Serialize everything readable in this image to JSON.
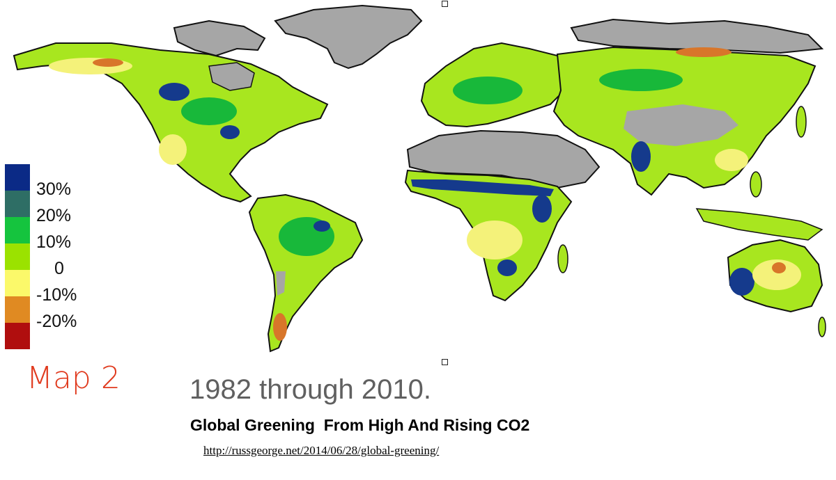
{
  "map": {
    "legend": {
      "colors": [
        "#0b2a86",
        "#2e6e65",
        "#15c43e",
        "#9be200",
        "#fbf96a",
        "#e08a22",
        "#b00e0e"
      ],
      "labels": [
        "30%",
        "20%",
        "10%",
        "0",
        "-10%",
        "-20%"
      ]
    },
    "land_colors": {
      "no_data": "#a6a6a6",
      "neutral": "#a8e61f",
      "dry": "#f4f27a",
      "wet": "#18b83a",
      "strong": "#153a8c",
      "loss": "#d8762a"
    }
  },
  "map_label": "Map 2",
  "period": "1982 through 2010.",
  "subtitle": "Global Greening  From High And Rising CO2",
  "source_url": "http://russgeorge.net/2014/06/28/global-greening/"
}
